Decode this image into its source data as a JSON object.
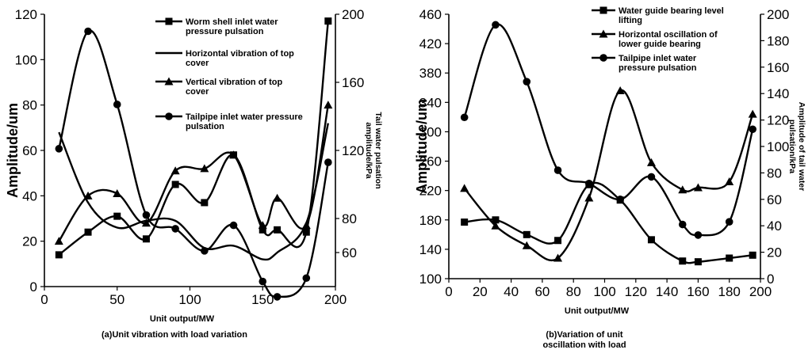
{
  "chart_data": [
    {
      "type": "line",
      "caption": "(a)Unit vibration with load variation",
      "xlabel": "Unit output/MW",
      "ylabel": "Amplitude/um",
      "ylabel_right": "Tail water pulsation amplitude/kPa",
      "xlim": [
        0,
        200
      ],
      "ylim": [
        0,
        120
      ],
      "ylim_right": [
        40,
        200
      ],
      "x_ticks": [
        0,
        50,
        100,
        150,
        200
      ],
      "y_ticks": [
        0,
        20,
        40,
        60,
        80,
        100,
        120
      ],
      "y_ticks_right": [
        60,
        80,
        120,
        160,
        200
      ],
      "grid": false,
      "legend_position": "top-center",
      "series": [
        {
          "name": "Worm shell inlet water pressure pulsation",
          "marker": "square",
          "axis": "left",
          "x": [
            10,
            30,
            50,
            70,
            90,
            110,
            130,
            150,
            160,
            180,
            195
          ],
          "y": [
            14,
            24,
            31,
            21,
            45,
            37,
            58,
            25,
            25,
            24,
            117
          ]
        },
        {
          "name": "Horizontal vibration of top cover",
          "marker": "none",
          "axis": "left",
          "x": [
            10,
            30,
            50,
            70,
            90,
            110,
            130,
            150,
            160,
            180,
            195
          ],
          "y": [
            68,
            37,
            26,
            29,
            29,
            17,
            18,
            12,
            15,
            28,
            72
          ]
        },
        {
          "name": "Vertical vibration of top cover",
          "marker": "triangle",
          "axis": "left",
          "x": [
            10,
            30,
            50,
            70,
            90,
            110,
            130,
            150,
            160,
            180,
            195
          ],
          "y": [
            20,
            40,
            41,
            28,
            51,
            52,
            58,
            27,
            39,
            27,
            80
          ]
        },
        {
          "name": "Tailpipe inlet water pressure pulsation",
          "marker": "circle",
          "axis": "right",
          "x": [
            10,
            30,
            50,
            70,
            90,
            110,
            130,
            150,
            160,
            180,
            195
          ],
          "y": [
            121,
            190,
            147,
            82,
            74,
            61,
            76,
            43,
            34,
            45,
            113
          ]
        }
      ]
    },
    {
      "type": "line",
      "caption": "(b)Variation of unit oscillation with load",
      "xlabel": "Unit output/MW",
      "ylabel": "Amplitude/um",
      "ylabel_right": "Amplitude of tail water pulsation/kPa",
      "xlim": [
        0,
        200
      ],
      "ylim": [
        100,
        460
      ],
      "ylim_right": [
        0,
        200
      ],
      "x_ticks": [
        0,
        20,
        40,
        60,
        80,
        100,
        120,
        140,
        160,
        180,
        200
      ],
      "y_ticks": [
        100,
        140,
        180,
        220,
        260,
        300,
        340,
        380,
        420,
        460
      ],
      "y_ticks_right": [
        0,
        20,
        40,
        60,
        80,
        100,
        120,
        140,
        160,
        180,
        200
      ],
      "grid": false,
      "legend_position": "top-center",
      "series": [
        {
          "name": "Water guide bearing level lifting",
          "marker": "square",
          "axis": "left",
          "x": [
            10,
            30,
            50,
            70,
            90,
            110,
            130,
            150,
            160,
            180,
            195
          ],
          "y": [
            177,
            180,
            160,
            152,
            228,
            207,
            153,
            124,
            123,
            128,
            132
          ]
        },
        {
          "name": "Horizontal oscillation of lower guide bearing",
          "marker": "triangle",
          "axis": "left",
          "x": [
            10,
            30,
            50,
            70,
            90,
            110,
            130,
            150,
            160,
            180,
            195
          ],
          "y": [
            223,
            172,
            145,
            128,
            210,
            356,
            258,
            221,
            224,
            232,
            324
          ]
        },
        {
          "name": "Tailpipe inlet water pressure pulsation",
          "marker": "circle",
          "axis": "right",
          "x": [
            10,
            30,
            50,
            70,
            90,
            110,
            130,
            150,
            160,
            180,
            195
          ],
          "y": [
            122,
            192,
            149,
            82,
            72,
            60,
            77,
            41,
            33,
            43,
            113
          ]
        }
      ]
    }
  ]
}
